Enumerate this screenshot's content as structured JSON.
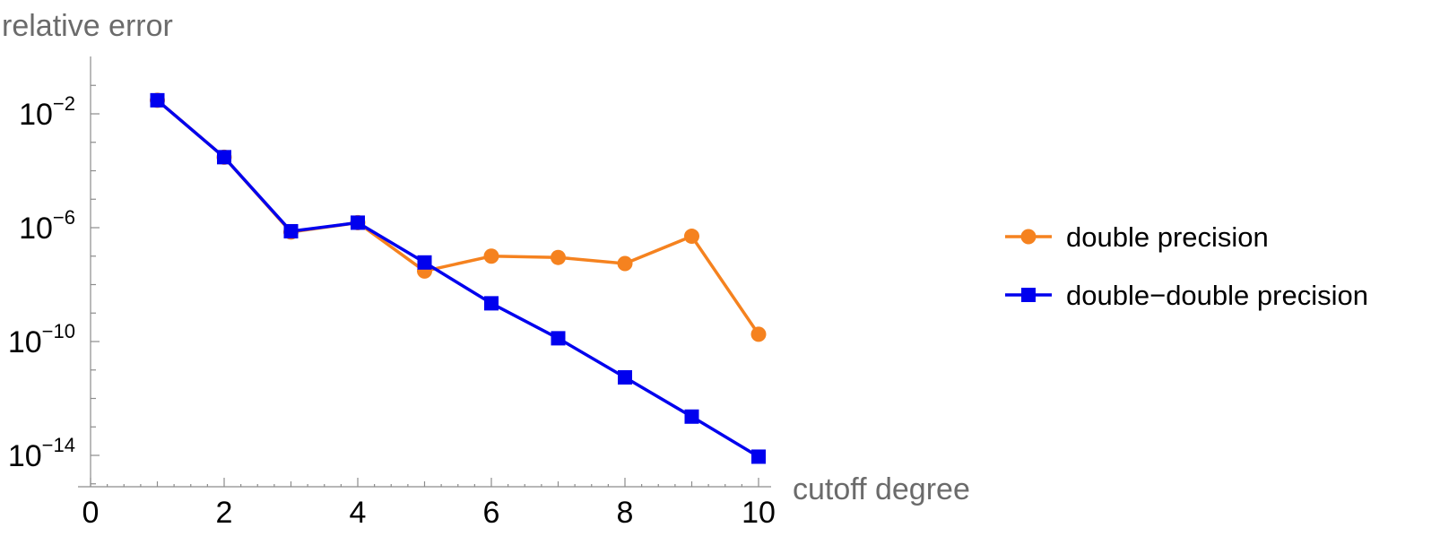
{
  "chart_data": {
    "type": "line",
    "ylabel": "relative error",
    "xlabel": "cutoff degree",
    "x_ticks": [
      0,
      2,
      4,
      6,
      8,
      10
    ],
    "x_minor_ticks": [
      1,
      3,
      5,
      7,
      9
    ],
    "xlim": [
      0,
      10.2
    ],
    "y_scale": "log",
    "y_ticks": [
      {
        "base": "10",
        "exp": "−2",
        "value": 0.01
      },
      {
        "base": "10",
        "exp": "−6",
        "value": 1e-06
      },
      {
        "base": "10",
        "exp": "−10",
        "value": 1e-10
      },
      {
        "base": "10",
        "exp": "−14",
        "value": 1e-14
      }
    ],
    "ylim_log10": [
      -15,
      0
    ],
    "legend_position": "right",
    "series": [
      {
        "name": "double precision",
        "color": "#f5821f",
        "marker": "circle",
        "x": [
          1,
          2,
          3,
          4,
          5,
          6,
          7,
          8,
          9,
          10
        ],
        "y": [
          0.03,
          0.0003,
          7e-07,
          1.5e-06,
          3e-08,
          1e-07,
          9e-08,
          5.5e-08,
          5e-07,
          1.8e-10
        ]
      },
      {
        "name": "double−double precision",
        "color": "#0000ee",
        "marker": "square",
        "x": [
          1,
          2,
          3,
          4,
          5,
          6,
          7,
          8,
          9,
          10
        ],
        "y": [
          0.03,
          0.0003,
          7.5e-07,
          1.5e-06,
          6e-08,
          2.2e-09,
          1.3e-10,
          5.5e-12,
          2.3e-13,
          9e-15
        ]
      }
    ]
  }
}
